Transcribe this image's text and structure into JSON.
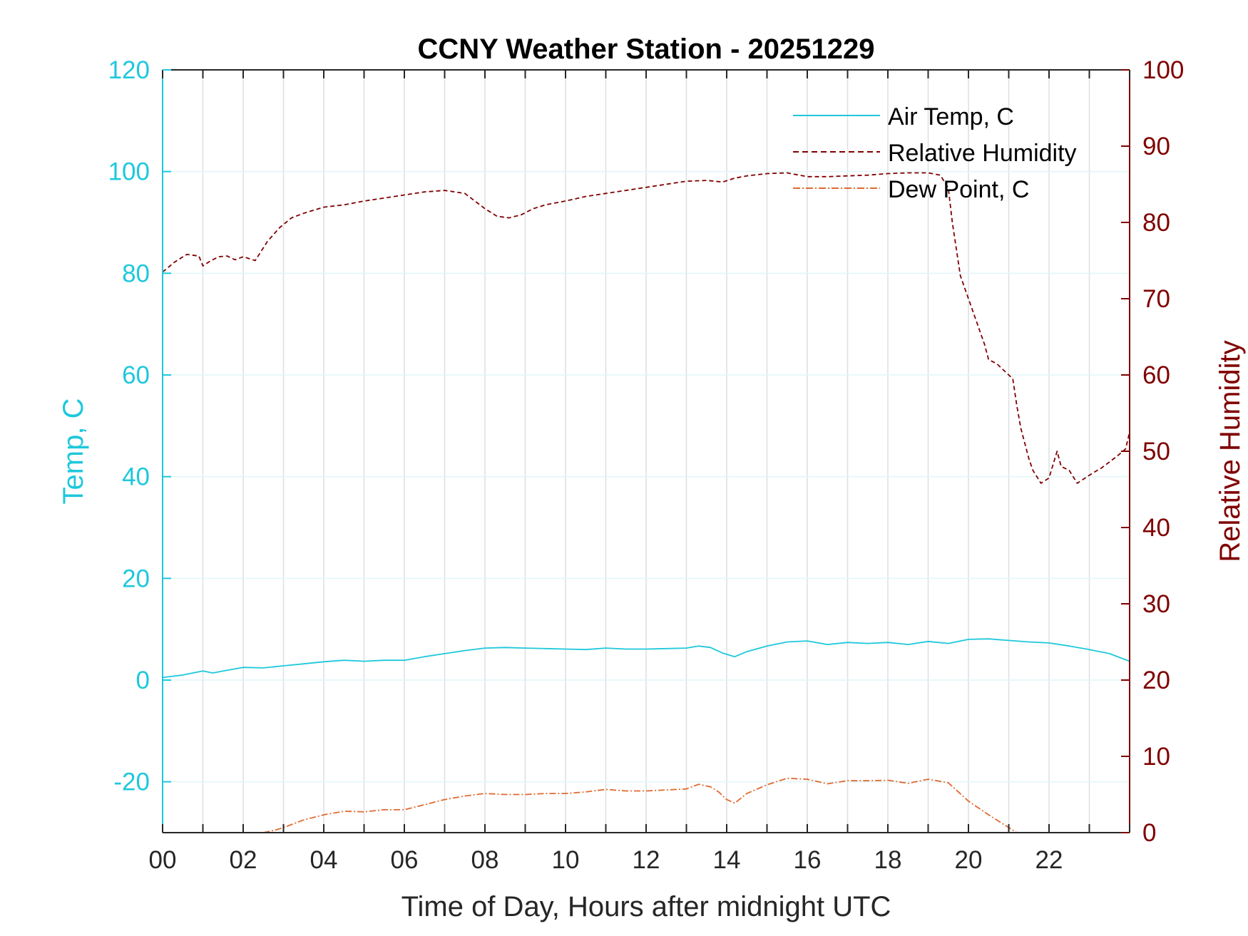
{
  "chart_data": {
    "type": "line",
    "title": "CCNY Weather Station - 20251229",
    "xlabel": "Time of Day, Hours after midnight UTC",
    "ylabel_left": "Temp, C",
    "ylabel_right": "Relative Humidity",
    "xlim": [
      0,
      24
    ],
    "ylim_left": [
      -30,
      120
    ],
    "ylim_right": [
      0,
      100
    ],
    "x_ticks": [
      0,
      2,
      4,
      6,
      8,
      10,
      12,
      14,
      16,
      18,
      20,
      22
    ],
    "x_tick_labels": [
      "00",
      "02",
      "04",
      "06",
      "08",
      "10",
      "12",
      "14",
      "16",
      "18",
      "20",
      "22"
    ],
    "y_left_ticks": [
      120,
      100,
      80,
      60,
      40,
      20,
      0,
      -20
    ],
    "y_left_tick_labels": [
      "120",
      "100",
      "80",
      "60",
      "40",
      "20",
      "0",
      "-20"
    ],
    "y_right_ticks": [
      100,
      90,
      80,
      70,
      60,
      50,
      40,
      30,
      20,
      10,
      0
    ],
    "y_right_tick_labels": [
      "100",
      "90",
      "80",
      "70",
      "60",
      "50",
      "40",
      "30",
      "20",
      "10",
      "0"
    ],
    "grid": true,
    "legend_position": "top-right",
    "colors": {
      "air_temp": "#1ec8dc",
      "relative_humidity": "#800000",
      "dew_point": "#e06a30",
      "axis_left": "#1ec8dc",
      "axis_right": "#800000"
    },
    "series": [
      {
        "name": "Air Temp, C",
        "axis": "left",
        "style": "solid",
        "x": [
          0,
          0.5,
          1,
          1.25,
          1.5,
          2,
          2.5,
          3,
          3.5,
          4,
          4.5,
          5,
          5.5,
          6,
          6.5,
          7,
          7.5,
          8,
          8.5,
          9,
          9.5,
          10,
          10.5,
          11,
          11.5,
          12,
          12.5,
          13,
          13.3,
          13.6,
          13.9,
          14.2,
          14.5,
          15,
          15.5,
          16,
          16.5,
          17,
          17.5,
          18,
          18.5,
          19,
          19.5,
          20,
          20.5,
          21,
          21.5,
          22,
          22.5,
          23,
          23.5,
          24
        ],
        "values": [
          0.5,
          1,
          1.8,
          1.4,
          1.8,
          2.5,
          2.4,
          2.8,
          3.2,
          3.6,
          3.9,
          3.7,
          3.9,
          3.9,
          4.6,
          5.2,
          5.8,
          6.3,
          6.4,
          6.3,
          6.2,
          6.1,
          6,
          6.3,
          6.1,
          6.1,
          6.2,
          6.3,
          6.7,
          6.4,
          5.3,
          4.6,
          5.6,
          6.7,
          7.5,
          7.7,
          7,
          7.4,
          7.2,
          7.4,
          7,
          7.6,
          7.2,
          8,
          8.1,
          7.8,
          7.5,
          7.3,
          6.7,
          6,
          5.2,
          3.7
        ]
      },
      {
        "name": "Relative Humidity",
        "axis": "right",
        "style": "dashed",
        "x": [
          0,
          0.3,
          0.6,
          0.9,
          1.0,
          1.2,
          1.4,
          1.6,
          1.8,
          2.0,
          2.3,
          2.6,
          2.9,
          3.2,
          3.5,
          4,
          4.5,
          5,
          5.5,
          6,
          6.5,
          7,
          7.5,
          8,
          8.3,
          8.6,
          8.9,
          9.2,
          9.5,
          10,
          10.5,
          11,
          11.5,
          12,
          12.5,
          13,
          13.5,
          13.9,
          14.2,
          14.5,
          15,
          15.5,
          16,
          16.5,
          17,
          17.5,
          18,
          18.5,
          19,
          19.3,
          19.5,
          19.6,
          19.8,
          20.0,
          20.2,
          20.4,
          20.5,
          20.7,
          20.9,
          21.1,
          21.2,
          21.3,
          21.5,
          21.6,
          21.8,
          22.0,
          22.2,
          22.3,
          22.5,
          22.7,
          22.9,
          23.1,
          23.3,
          23.5,
          23.7,
          23.9,
          24
        ],
        "values": [
          73.5,
          74.8,
          75.8,
          75.6,
          74.3,
          75,
          75.5,
          75.6,
          75.1,
          75.5,
          75,
          77.5,
          79.3,
          80.6,
          81.2,
          82,
          82.3,
          82.8,
          83.2,
          83.6,
          84,
          84.2,
          83.8,
          81.8,
          80.8,
          80.6,
          81,
          81.8,
          82.3,
          82.8,
          83.4,
          83.8,
          84.2,
          84.6,
          85,
          85.4,
          85.5,
          85.3,
          85.8,
          86.1,
          86.4,
          86.5,
          86,
          86,
          86.1,
          86.2,
          86.4,
          86.5,
          86.5,
          86.2,
          84.5,
          80,
          73,
          70,
          67,
          64,
          62,
          61.5,
          60.5,
          59.5,
          56,
          53,
          49,
          47.5,
          45.8,
          46.5,
          50,
          48,
          47.5,
          45.8,
          46.5,
          47.2,
          47.8,
          48.6,
          49.4,
          50.3,
          52.5
        ]
      },
      {
        "name": "Dew Point, C",
        "axis": "left",
        "style": "dash-dot",
        "x": [
          2.5,
          2.8,
          3.0,
          3.5,
          4.0,
          4.5,
          5.0,
          5.5,
          6.0,
          6.5,
          7.0,
          7.5,
          8.0,
          8.5,
          9.0,
          9.5,
          10.0,
          10.5,
          11.0,
          11.5,
          12.0,
          12.5,
          13.0,
          13.3,
          13.6,
          13.8,
          14.0,
          14.2,
          14.5,
          15.0,
          15.5,
          16.0,
          16.5,
          17.0,
          17.5,
          18.0,
          18.5,
          19.0,
          19.5,
          20.0,
          20.5,
          21.0,
          21.2
        ],
        "values": [
          -30,
          -29.5,
          -29,
          -27.5,
          -26.5,
          -25.8,
          -25.9,
          -25.5,
          -25.5,
          -24.5,
          -23.5,
          -22.8,
          -22.3,
          -22.5,
          -22.5,
          -22.3,
          -22.3,
          -22,
          -21.5,
          -21.8,
          -21.8,
          -21.6,
          -21.4,
          -20.5,
          -21,
          -22,
          -23.5,
          -24.2,
          -22.3,
          -20.6,
          -19.3,
          -19.5,
          -20.4,
          -19.8,
          -19.8,
          -19.7,
          -20.3,
          -19.5,
          -20.2,
          -23.8,
          -26.5,
          -29,
          -30
        ]
      }
    ]
  }
}
